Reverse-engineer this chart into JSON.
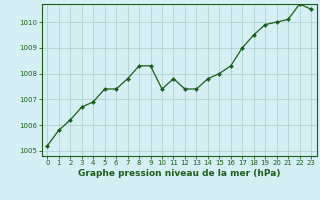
{
  "x": [
    0,
    1,
    2,
    3,
    4,
    5,
    6,
    7,
    8,
    9,
    10,
    11,
    12,
    13,
    14,
    15,
    16,
    17,
    18,
    19,
    20,
    21,
    22,
    23
  ],
  "y": [
    1005.2,
    1005.8,
    1006.2,
    1006.7,
    1006.9,
    1007.4,
    1007.4,
    1007.8,
    1008.3,
    1008.3,
    1007.4,
    1007.8,
    1007.4,
    1007.4,
    1007.8,
    1008.0,
    1008.3,
    1009.0,
    1009.5,
    1009.9,
    1010.0,
    1010.1,
    1010.7,
    1010.5
  ],
  "xlim": [
    -0.5,
    23.5
  ],
  "ylim": [
    1004.8,
    1010.7
  ],
  "yticks": [
    1005,
    1006,
    1007,
    1008,
    1009,
    1010
  ],
  "xticks": [
    0,
    1,
    2,
    3,
    4,
    5,
    6,
    7,
    8,
    9,
    10,
    11,
    12,
    13,
    14,
    15,
    16,
    17,
    18,
    19,
    20,
    21,
    22,
    23
  ],
  "xlabel": "Graphe pression niveau de la mer (hPa)",
  "line_color": "#1a5e1a",
  "marker": "D",
  "marker_size": 2.0,
  "bg_color": "#d6eff5",
  "grid_color": "#aacccc",
  "tick_label_fontsize": 5.0,
  "xlabel_fontsize": 6.5,
  "xlabel_fontweight": "bold"
}
